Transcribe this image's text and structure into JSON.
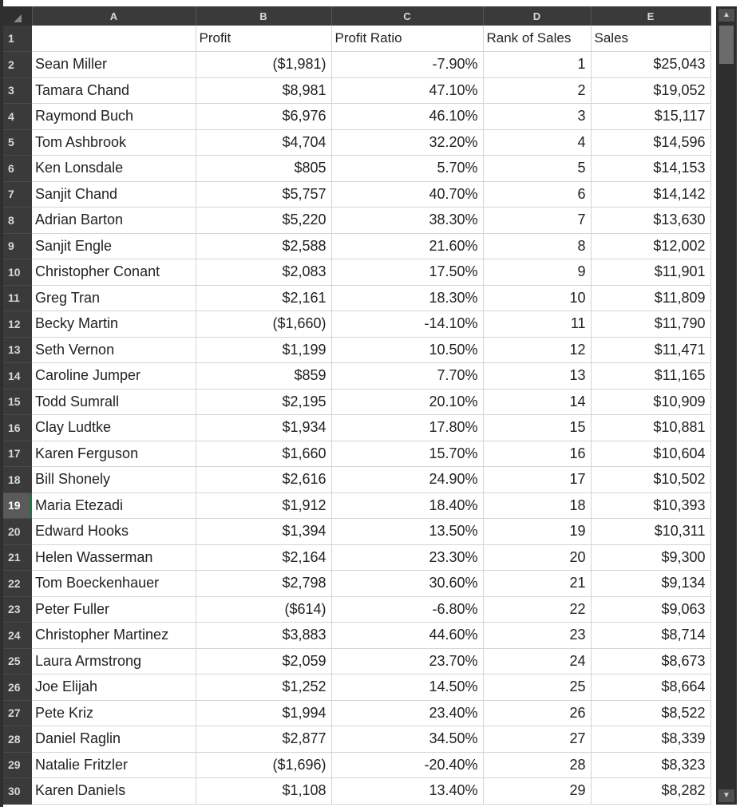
{
  "columns": [
    "A",
    "B",
    "C",
    "D",
    "E"
  ],
  "header_row": {
    "num": "1",
    "a": "",
    "b": "Profit",
    "c": "Profit Ratio",
    "d": "Rank of Sales",
    "e": "Sales"
  },
  "rows": [
    {
      "num": "2",
      "name": "Sean Miller",
      "profit": "($1,981)",
      "ratio": "-7.90%",
      "rank": "1",
      "sales": "$25,043"
    },
    {
      "num": "3",
      "name": "Tamara Chand",
      "profit": "$8,981",
      "ratio": "47.10%",
      "rank": "2",
      "sales": "$19,052"
    },
    {
      "num": "4",
      "name": "Raymond Buch",
      "profit": "$6,976",
      "ratio": "46.10%",
      "rank": "3",
      "sales": "$15,117"
    },
    {
      "num": "5",
      "name": "Tom Ashbrook",
      "profit": "$4,704",
      "ratio": "32.20%",
      "rank": "4",
      "sales": "$14,596"
    },
    {
      "num": "6",
      "name": "Ken Lonsdale",
      "profit": "$805",
      "ratio": "5.70%",
      "rank": "5",
      "sales": "$14,153"
    },
    {
      "num": "7",
      "name": "Sanjit Chand",
      "profit": "$5,757",
      "ratio": "40.70%",
      "rank": "6",
      "sales": "$14,142"
    },
    {
      "num": "8",
      "name": "Adrian Barton",
      "profit": "$5,220",
      "ratio": "38.30%",
      "rank": "7",
      "sales": "$13,630"
    },
    {
      "num": "9",
      "name": "Sanjit Engle",
      "profit": "$2,588",
      "ratio": "21.60%",
      "rank": "8",
      "sales": "$12,002"
    },
    {
      "num": "10",
      "name": "Christopher Conant",
      "profit": "$2,083",
      "ratio": "17.50%",
      "rank": "9",
      "sales": "$11,901"
    },
    {
      "num": "11",
      "name": "Greg Tran",
      "profit": "$2,161",
      "ratio": "18.30%",
      "rank": "10",
      "sales": "$11,809"
    },
    {
      "num": "12",
      "name": "Becky Martin",
      "profit": "($1,660)",
      "ratio": "-14.10%",
      "rank": "11",
      "sales": "$11,790"
    },
    {
      "num": "13",
      "name": "Seth Vernon",
      "profit": "$1,199",
      "ratio": "10.50%",
      "rank": "12",
      "sales": "$11,471"
    },
    {
      "num": "14",
      "name": "Caroline Jumper",
      "profit": "$859",
      "ratio": "7.70%",
      "rank": "13",
      "sales": "$11,165"
    },
    {
      "num": "15",
      "name": "Todd Sumrall",
      "profit": "$2,195",
      "ratio": "20.10%",
      "rank": "14",
      "sales": "$10,909"
    },
    {
      "num": "16",
      "name": "Clay Ludtke",
      "profit": "$1,934",
      "ratio": "17.80%",
      "rank": "15",
      "sales": "$10,881"
    },
    {
      "num": "17",
      "name": "Karen Ferguson",
      "profit": "$1,660",
      "ratio": "15.70%",
      "rank": "16",
      "sales": "$10,604"
    },
    {
      "num": "18",
      "name": "Bill Shonely",
      "profit": "$2,616",
      "ratio": "24.90%",
      "rank": "17",
      "sales": "$10,502"
    },
    {
      "num": "19",
      "name": "Maria Etezadi",
      "profit": "$1,912",
      "ratio": "18.40%",
      "rank": "18",
      "sales": "$10,393"
    },
    {
      "num": "20",
      "name": "Edward Hooks",
      "profit": "$1,394",
      "ratio": "13.50%",
      "rank": "19",
      "sales": "$10,311"
    },
    {
      "num": "21",
      "name": "Helen Wasserman",
      "profit": "$2,164",
      "ratio": "23.30%",
      "rank": "20",
      "sales": "$9,300"
    },
    {
      "num": "22",
      "name": "Tom Boeckenhauer",
      "profit": "$2,798",
      "ratio": "30.60%",
      "rank": "21",
      "sales": "$9,134"
    },
    {
      "num": "23",
      "name": "Peter Fuller",
      "profit": "($614)",
      "ratio": "-6.80%",
      "rank": "22",
      "sales": "$9,063"
    },
    {
      "num": "24",
      "name": "Christopher Martinez",
      "profit": "$3,883",
      "ratio": "44.60%",
      "rank": "23",
      "sales": "$8,714"
    },
    {
      "num": "25",
      "name": "Laura Armstrong",
      "profit": "$2,059",
      "ratio": "23.70%",
      "rank": "24",
      "sales": "$8,673"
    },
    {
      "num": "26",
      "name": "Joe Elijah",
      "profit": "$1,252",
      "ratio": "14.50%",
      "rank": "25",
      "sales": "$8,664"
    },
    {
      "num": "27",
      "name": "Pete Kriz",
      "profit": "$1,994",
      "ratio": "23.40%",
      "rank": "26",
      "sales": "$8,522"
    },
    {
      "num": "28",
      "name": "Daniel Raglin",
      "profit": "$2,877",
      "ratio": "34.50%",
      "rank": "27",
      "sales": "$8,339"
    },
    {
      "num": "29",
      "name": "Natalie Fritzler",
      "profit": "($1,696)",
      "ratio": "-20.40%",
      "rank": "28",
      "sales": "$8,323"
    },
    {
      "num": "30",
      "name": "Karen Daniels",
      "profit": "$1,108",
      "ratio": "13.40%",
      "rank": "29",
      "sales": "$8,282"
    }
  ],
  "selected_row": "19",
  "colors": {
    "header_bg": "#3a3a3a",
    "grid_line": "#d4d4d4",
    "selected_accent": "#217346"
  },
  "icons": {
    "select_all": "select-all-triangle-icon",
    "scroll_up": "scroll-up-arrow-icon",
    "scroll_down": "scroll-down-arrow-icon"
  }
}
